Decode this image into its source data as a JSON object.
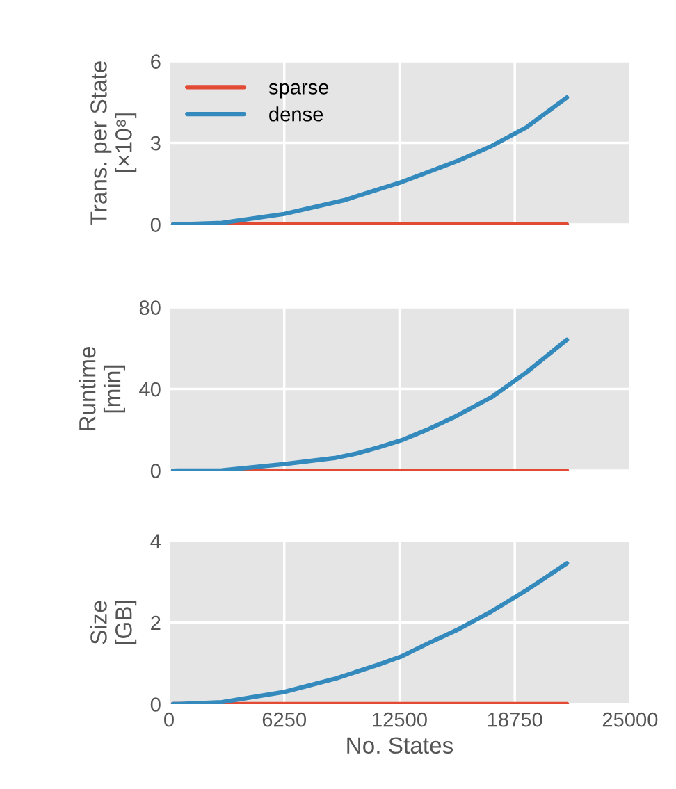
{
  "chart_data": [
    {
      "type": "line",
      "ylabel": "Trans. per State\n[×10⁸]",
      "legend": "top left",
      "grid": true,
      "tick_labels": "y",
      "xlim": [
        0,
        25000
      ],
      "xticks": [
        0,
        6250,
        12500,
        18750,
        25000
      ],
      "ylim": [
        0,
        6
      ],
      "yticks": [
        0,
        3,
        6
      ],
      "series": [
        {
          "name": "sparse",
          "color": "#e24a33",
          "x": [
            223,
            2865,
            6250,
            9478,
            12607,
            15666,
            17479,
            19378,
            21574
          ],
          "values": [
            0,
            0,
            0,
            0,
            0,
            0,
            0,
            0,
            0
          ]
        },
        {
          "name": "dense",
          "color": "#348abd",
          "x": [
            223,
            2865,
            6250,
            9478,
            12607,
            15666,
            17479,
            19378,
            21574
          ],
          "values": [
            0,
            0.06,
            0.39,
            0.89,
            1.56,
            2.34,
            2.88,
            3.57,
            4.67
          ]
        }
      ]
    },
    {
      "type": "line",
      "ylabel": "Runtime\n[min]",
      "grid": true,
      "tick_labels": "y",
      "xlim": [
        0,
        25000
      ],
      "xticks": [
        0,
        6250,
        12500,
        18750,
        25000
      ],
      "ylim": [
        0,
        80
      ],
      "yticks": [
        0,
        40,
        80
      ],
      "series": [
        {
          "color": "#e24a33",
          "x": [
            223,
            2865,
            6168,
            9057,
            10130,
            11369,
            12607,
            14011,
            15580,
            17479,
            19378,
            21574
          ],
          "values": [
            0,
            0,
            0,
            0,
            0,
            0,
            0,
            0,
            0,
            0,
            0,
            0
          ]
        },
        {
          "color": "#348abd",
          "x": [
            223,
            2865,
            6168,
            9057,
            10130,
            11369,
            12607,
            14011,
            15580,
            17479,
            19378,
            21574
          ],
          "values": [
            0,
            0.15,
            3.1,
            6.3,
            8.3,
            11.4,
            14.9,
            20.1,
            26.7,
            35.9,
            48.1,
            64.1
          ]
        }
      ]
    },
    {
      "type": "line",
      "xlabel": "No. States",
      "ylabel": "Size\n[GB]",
      "grid": true,
      "xlim": [
        0,
        25000
      ],
      "xticks": [
        0,
        6250,
        12500,
        18750,
        25000
      ],
      "ylim": [
        0,
        4
      ],
      "yticks": [
        0,
        2,
        4
      ],
      "series": [
        {
          "color": "#e24a33",
          "x": [
            223,
            2865,
            6250,
            9057,
            11369,
            12607,
            14011,
            15580,
            17479,
            19378,
            21574
          ],
          "values": [
            0,
            0,
            0,
            0,
            0,
            0,
            0,
            0,
            0,
            0,
            0
          ]
        },
        {
          "color": "#348abd",
          "x": [
            223,
            2865,
            6250,
            9057,
            11369,
            12607,
            14011,
            15580,
            17479,
            19378,
            21574
          ],
          "values": [
            0,
            0.05,
            0.3,
            0.63,
            0.97,
            1.17,
            1.48,
            1.81,
            2.27,
            2.79,
            3.45
          ]
        }
      ]
    }
  ]
}
